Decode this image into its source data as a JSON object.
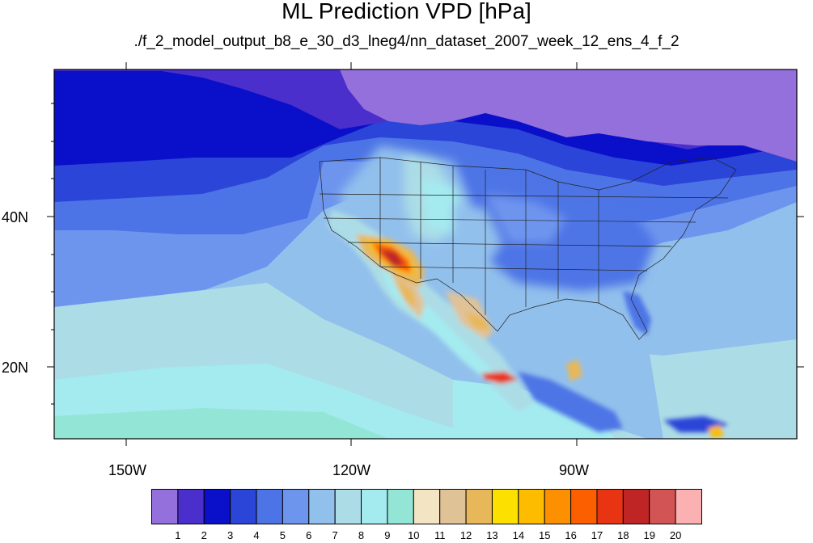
{
  "title": "ML Prediction VPD [hPa]",
  "subtitle": "./f_2_model_output_b8_e_30_d3_lneg4/nn_dataset_2007_week_12_ens_4_f_2",
  "lon_labels": [
    "150W",
    "120W",
    "90W"
  ],
  "lat_labels": [
    "40N",
    "20N"
  ],
  "colorbar": {
    "labels": [
      "1",
      "2",
      "3",
      "4",
      "5",
      "6",
      "7",
      "8",
      "9",
      "10",
      "11",
      "12",
      "13",
      "14",
      "15",
      "16",
      "17",
      "18",
      "19",
      "20"
    ],
    "colors": [
      "#9370db",
      "#4b2fcc",
      "#0a0fc9",
      "#2a45d8",
      "#4d74e6",
      "#6e95ee",
      "#92c0ec",
      "#acdde6",
      "#a4ebf0",
      "#93e6d6",
      "#f3e5c3",
      "#e0c297",
      "#e8b759",
      "#fce100",
      "#fdbc00",
      "#fd9000",
      "#fc5f00",
      "#e93414",
      "#bf2525",
      "#d35454",
      "#fbb1b1"
    ]
  },
  "map_extent": {
    "lon_min": -160,
    "lon_max": -61,
    "lat_min": 10,
    "lat_max": 59
  }
}
